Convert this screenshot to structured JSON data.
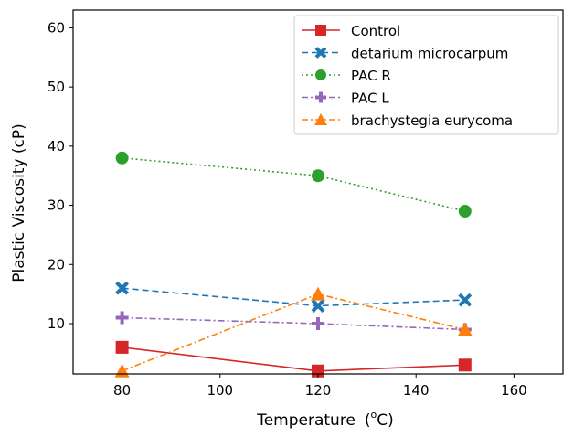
{
  "chart_data": {
    "type": "line",
    "title": "",
    "xlabel": "Temperature",
    "xlabel_unit_prefix": "(",
    "xlabel_unit_sup": "o",
    "xlabel_unit_suffix": "C)",
    "ylabel": "Plastic Viscosity (cP)",
    "xlim": [
      70,
      170
    ],
    "ylim": [
      1.5,
      63
    ],
    "xticks": [
      80,
      100,
      120,
      140,
      160
    ],
    "yticks": [
      10,
      20,
      30,
      40,
      50,
      60
    ],
    "grid": false,
    "legend_position": "top-right",
    "series": [
      {
        "name": "Control",
        "x": [
          80,
          120,
          150
        ],
        "values": [
          6,
          2,
          3
        ],
        "color": "#d62728",
        "marker": "square",
        "dash": "solid"
      },
      {
        "name": "detarium microcarpum",
        "x": [
          80,
          120,
          150
        ],
        "values": [
          16,
          13,
          14
        ],
        "color": "#1f77b4",
        "marker": "x",
        "dash": "dashed"
      },
      {
        "name": "PAC R",
        "x": [
          80,
          120,
          150
        ],
        "values": [
          38,
          35,
          29
        ],
        "color": "#2ca02c",
        "marker": "circle",
        "dash": "dotted"
      },
      {
        "name": "PAC L",
        "x": [
          80,
          120,
          150
        ],
        "values": [
          11,
          10,
          9
        ],
        "color": "#9467bd",
        "marker": "plus",
        "dash": "dashdot"
      },
      {
        "name": "brachystegia eurycoma",
        "x": [
          80,
          120,
          150
        ],
        "values": [
          2,
          15,
          9
        ],
        "color": "#ff7f0e",
        "marker": "triangle",
        "dash": "dashdot"
      }
    ]
  }
}
